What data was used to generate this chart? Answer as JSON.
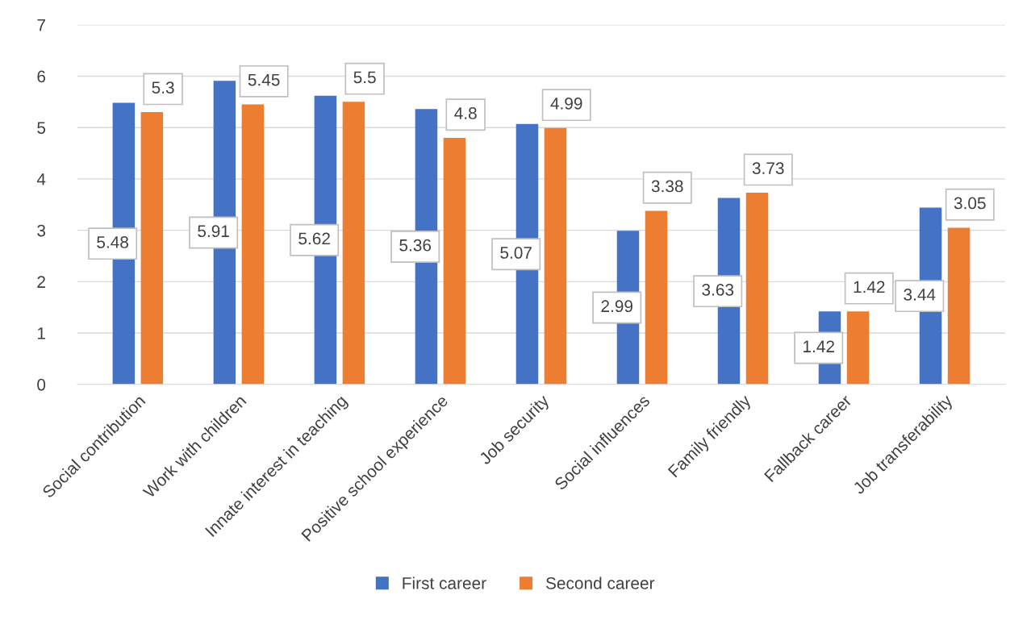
{
  "chart_data": {
    "type": "bar",
    "categories": [
      "Social contribution",
      "Work with children",
      "Innate interest in teaching",
      "Positive school experience",
      "Job security",
      "Social influences",
      "Family friendly",
      "Fallback career",
      "Job transferability"
    ],
    "series": [
      {
        "name": "First career",
        "color": "#4472c4",
        "values": [
          5.48,
          5.91,
          5.62,
          5.36,
          5.07,
          2.99,
          3.63,
          1.42,
          3.44
        ]
      },
      {
        "name": "Second career",
        "color": "#ed7d31",
        "values": [
          5.3,
          5.45,
          5.5,
          4.8,
          4.99,
          3.38,
          3.73,
          1.42,
          3.05
        ]
      }
    ],
    "ylim": [
      0,
      7
    ],
    "yticks": [
      0,
      1,
      2,
      3,
      4,
      5,
      6,
      7
    ],
    "grid": "y",
    "legend": "bottom",
    "data_labels": true
  }
}
